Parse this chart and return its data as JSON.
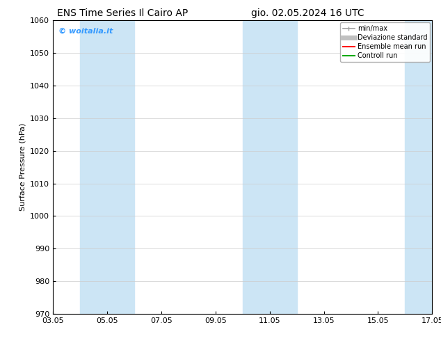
{
  "title_left": "ENS Time Series Il Cairo AP",
  "title_right": "gio. 02.05.2024 16 UTC",
  "ylabel": "Surface Pressure (hPa)",
  "ylim": [
    970,
    1060
  ],
  "yticks": [
    970,
    980,
    990,
    1000,
    1010,
    1020,
    1030,
    1040,
    1050,
    1060
  ],
  "xtick_labels": [
    "03.05",
    "05.05",
    "07.05",
    "09.05",
    "11.05",
    "13.05",
    "15.05",
    "17.05"
  ],
  "xtick_positions": [
    0,
    2,
    4,
    6,
    8,
    10,
    12,
    14
  ],
  "shaded_bands": [
    {
      "x_start": 1,
      "x_end": 3
    },
    {
      "x_start": 7,
      "x_end": 9
    },
    {
      "x_start": 13,
      "x_end": 14
    }
  ],
  "band_color": "#cce5f5",
  "watermark": "© woitalia.it",
  "watermark_color": "#3399ff",
  "background_color": "#ffffff",
  "legend_entries": [
    {
      "label": "min/max",
      "color": "#a0a0a0",
      "lw": 1.2
    },
    {
      "label": "Deviazione standard",
      "color": "#c0c0c0",
      "lw": 5
    },
    {
      "label": "Ensemble mean run",
      "color": "#ff0000",
      "lw": 1.5
    },
    {
      "label": "Controll run",
      "color": "#00aa00",
      "lw": 1.5
    }
  ],
  "title_fontsize": 10,
  "ylabel_fontsize": 8,
  "tick_fontsize": 8,
  "legend_fontsize": 7,
  "watermark_fontsize": 8
}
